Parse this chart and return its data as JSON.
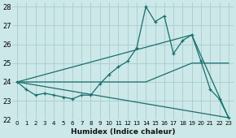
{
  "xlabel": "Humidex (Indice chaleur)",
  "bg_color": "#cce8e8",
  "grid_color": "#aacccc",
  "line_color": "#1a6e6e",
  "xlim": [
    -0.5,
    23.5
  ],
  "ylim": [
    22,
    28.2
  ],
  "xticks": [
    0,
    1,
    2,
    3,
    4,
    5,
    6,
    7,
    8,
    9,
    10,
    11,
    12,
    13,
    14,
    15,
    16,
    17,
    18,
    19,
    20,
    21,
    22,
    23
  ],
  "yticks": [
    22,
    23,
    24,
    25,
    26,
    27,
    28
  ],
  "series_main": {
    "x": [
      0,
      1,
      2,
      3,
      4,
      5,
      6,
      7,
      8,
      9,
      10,
      11,
      12,
      13,
      14,
      15,
      16,
      17,
      18,
      19,
      20,
      21,
      22,
      23
    ],
    "y": [
      24.0,
      23.6,
      23.3,
      23.4,
      23.3,
      23.2,
      23.1,
      23.3,
      23.3,
      23.9,
      24.4,
      24.8,
      25.1,
      25.8,
      28.0,
      27.2,
      27.5,
      25.5,
      26.2,
      26.5,
      25.1,
      23.6,
      23.1,
      22.1
    ]
  },
  "series_lines": [
    {
      "x": [
        0,
        23
      ],
      "y": [
        24.0,
        22.1
      ]
    },
    {
      "x": [
        0,
        14,
        19,
        23
      ],
      "y": [
        24.0,
        24.0,
        25.0,
        25.0
      ]
    },
    {
      "x": [
        0,
        19,
        23
      ],
      "y": [
        24.0,
        26.5,
        22.1
      ]
    }
  ]
}
